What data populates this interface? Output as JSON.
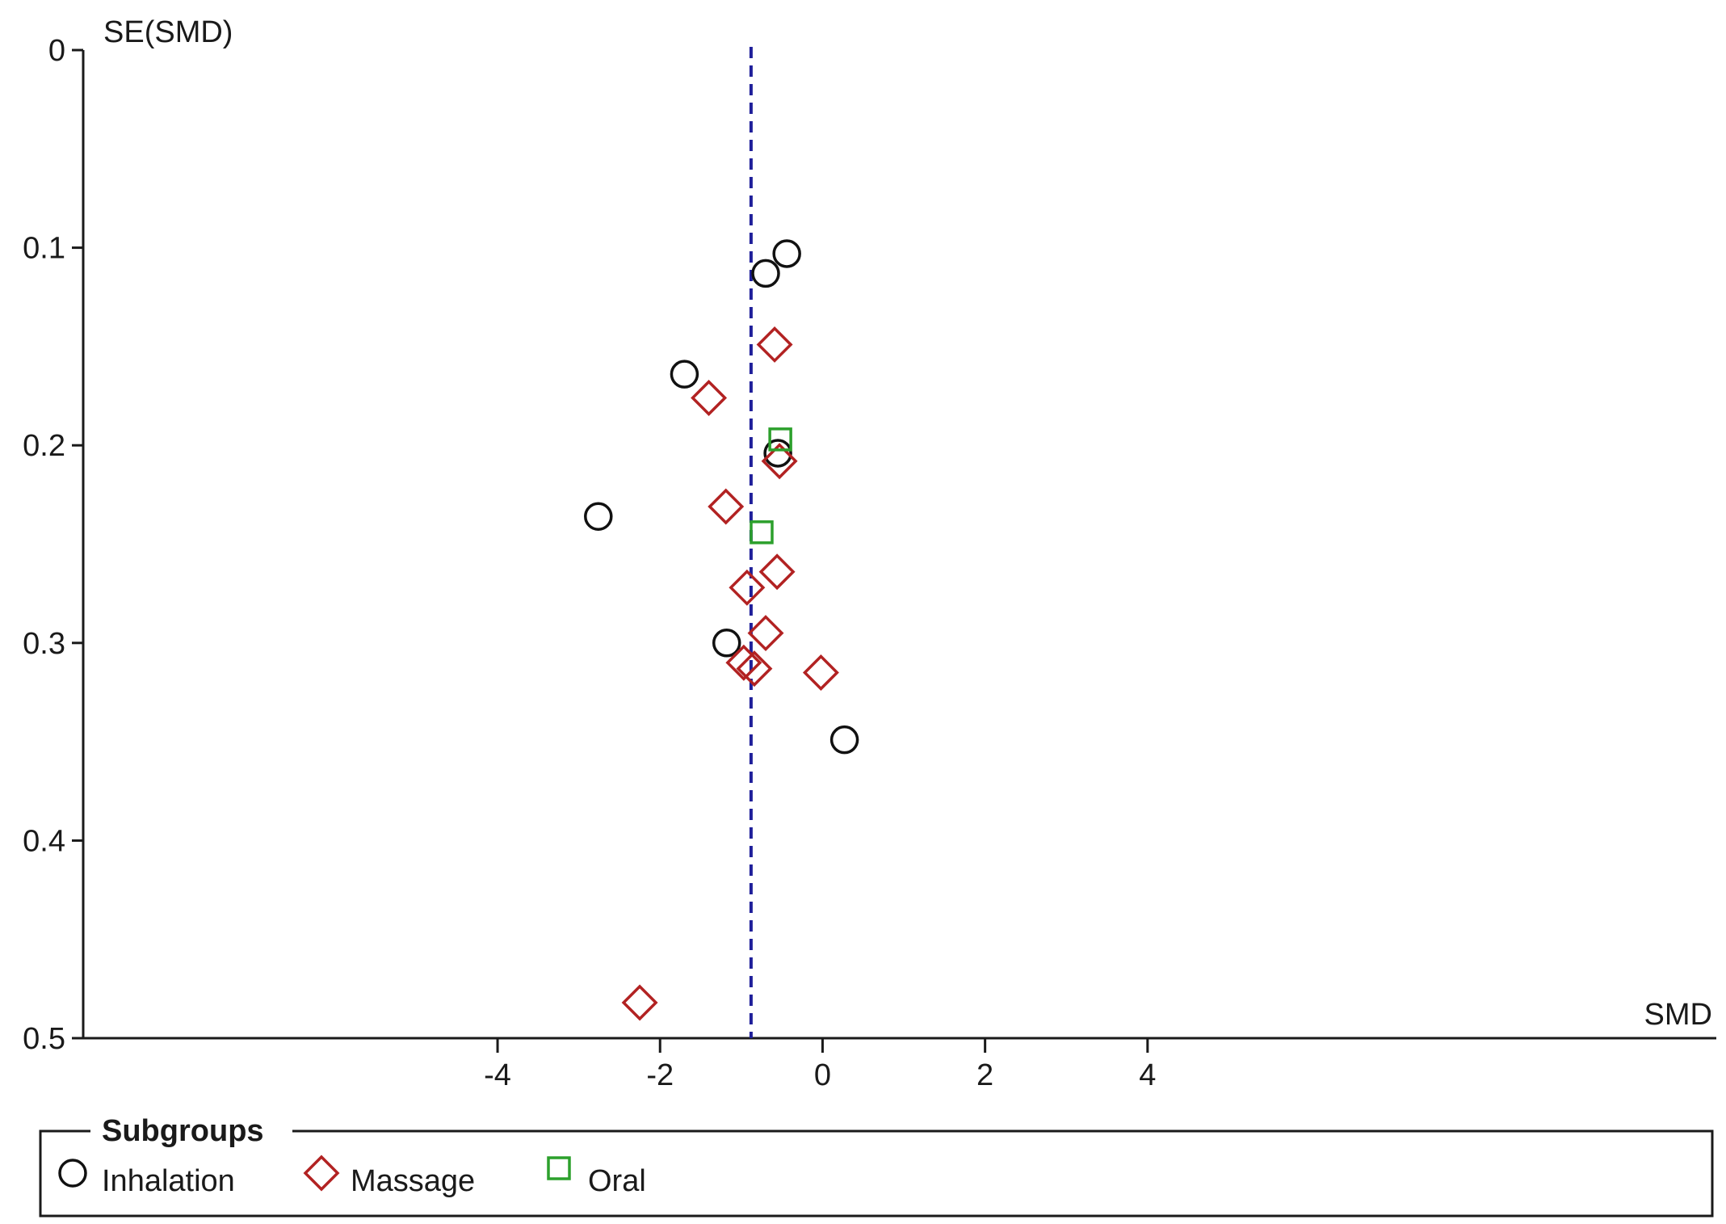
{
  "chart_data": {
    "type": "scatter",
    "title": "",
    "xlabel": "SMD",
    "ylabel": "SE(SMD)",
    "xlim": [
      -9.1,
      11.0
    ],
    "ylim": [
      0,
      0.5
    ],
    "y_inverted": true,
    "x_ticks": [
      -4,
      -2,
      0,
      2,
      4
    ],
    "y_ticks": [
      0,
      0.1,
      0.2,
      0.3,
      0.4,
      0.5
    ],
    "x_tick_labels": [
      "-4",
      "-2",
      "0",
      "2",
      "4"
    ],
    "y_tick_labels": [
      "0",
      "0.1",
      "0.2",
      "0.3",
      "0.4",
      "0.5"
    ],
    "pooled_estimate": -0.88,
    "legend": {
      "title": "Subgroups",
      "position": "bottom"
    },
    "series": [
      {
        "name": "Inhalation",
        "marker": "circle",
        "color": "#111111",
        "points": [
          {
            "x": -0.44,
            "y": 0.103
          },
          {
            "x": -0.7,
            "y": 0.113
          },
          {
            "x": -1.7,
            "y": 0.164
          },
          {
            "x": -0.55,
            "y": 0.204
          },
          {
            "x": -2.76,
            "y": 0.236
          },
          {
            "x": -1.18,
            "y": 0.3
          },
          {
            "x": 0.27,
            "y": 0.349
          }
        ]
      },
      {
        "name": "Massage",
        "marker": "diamond",
        "color": "#b22222",
        "points": [
          {
            "x": -0.59,
            "y": 0.149
          },
          {
            "x": -1.4,
            "y": 0.176
          },
          {
            "x": -0.53,
            "y": 0.208
          },
          {
            "x": -1.19,
            "y": 0.231
          },
          {
            "x": -0.56,
            "y": 0.264
          },
          {
            "x": -0.93,
            "y": 0.272
          },
          {
            "x": -0.7,
            "y": 0.295
          },
          {
            "x": -0.97,
            "y": 0.31
          },
          {
            "x": -0.84,
            "y": 0.313
          },
          {
            "x": -0.02,
            "y": 0.315
          },
          {
            "x": -2.25,
            "y": 0.482
          }
        ]
      },
      {
        "name": "Oral",
        "marker": "square",
        "color": "#2ca02c",
        "points": [
          {
            "x": -0.52,
            "y": 0.197
          },
          {
            "x": -0.75,
            "y": 0.244
          }
        ]
      }
    ]
  }
}
